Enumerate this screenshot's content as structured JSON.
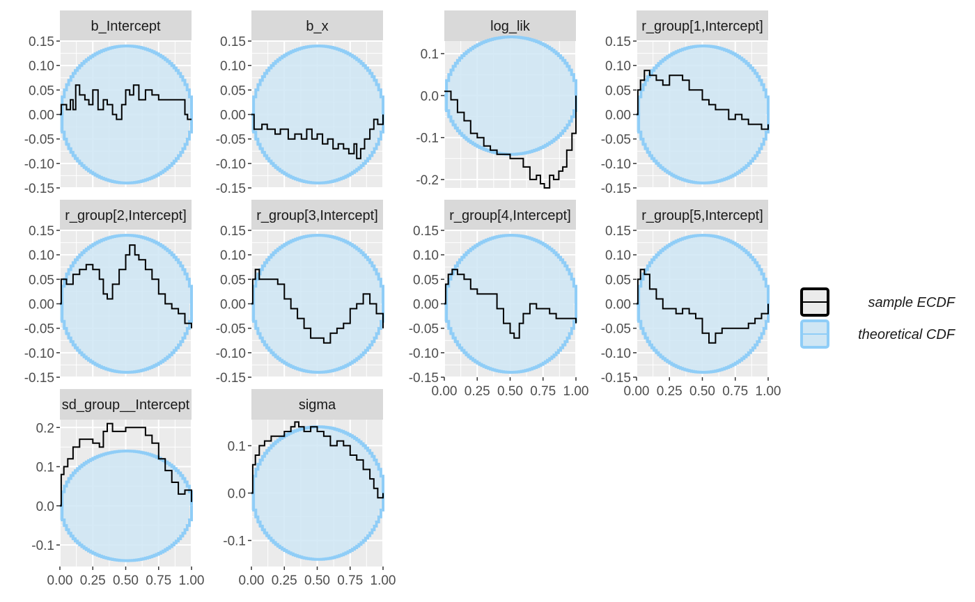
{
  "colors": {
    "panel_bg": "#ebebeb",
    "grid_major": "#ffffff",
    "strip_bg": "#d9d9d9",
    "band_fill": "#cfe6f4",
    "band_line": "#8fcdf7",
    "ecdf_line": "#000000",
    "tick_text": "#4d4d4d"
  },
  "legend": {
    "items": [
      {
        "key": "ecdf",
        "label": "sample ECDF"
      },
      {
        "key": "band",
        "label": "theoretical CDF"
      }
    ]
  },
  "chart_data": {
    "type": "line",
    "layout": "facet_wrap 4 columns, free y scales",
    "x_axis": {
      "range": [
        0,
        1
      ],
      "ticks": [
        0,
        0.25,
        0.5,
        0.75,
        1
      ],
      "tick_labels": [
        "0.00",
        "0.25",
        "0.50",
        "0.75",
        "1.00"
      ]
    },
    "band": {
      "description": "theoretical CDF simultaneous confidence band (circle-shaped)",
      "half_width_max": 0.14
    },
    "panels": [
      {
        "title": "b_Intercept",
        "ylim": [
          -0.15,
          0.15
        ],
        "yticks": [
          -0.15,
          -0.1,
          -0.05,
          0,
          0.05,
          0.1,
          0.15
        ],
        "ytick_labels": [
          "-0.15",
          "-0.10",
          "-0.05",
          "0.00",
          "0.05",
          "0.10",
          "0.15"
        ],
        "ecdf": [
          [
            0,
            0
          ],
          [
            0.01,
            0.02
          ],
          [
            0.05,
            0.01
          ],
          [
            0.08,
            0.03
          ],
          [
            0.1,
            0.01
          ],
          [
            0.12,
            0.06
          ],
          [
            0.15,
            0.04
          ],
          [
            0.19,
            0.03
          ],
          [
            0.22,
            0.02
          ],
          [
            0.25,
            0.05
          ],
          [
            0.29,
            0.01
          ],
          [
            0.33,
            0.03
          ],
          [
            0.36,
            0.02
          ],
          [
            0.4,
            0.0
          ],
          [
            0.43,
            -0.01
          ],
          [
            0.47,
            0.02
          ],
          [
            0.5,
            0.05
          ],
          [
            0.53,
            0.04
          ],
          [
            0.56,
            0.06
          ],
          [
            0.6,
            0.03
          ],
          [
            0.65,
            0.05
          ],
          [
            0.7,
            0.04
          ],
          [
            0.75,
            0.03
          ],
          [
            0.8,
            0.03
          ],
          [
            0.86,
            0.03
          ],
          [
            0.91,
            0.03
          ],
          [
            0.95,
            0.0
          ],
          [
            0.97,
            -0.01
          ],
          [
            1,
            -0.01
          ]
        ]
      },
      {
        "title": "b_x",
        "ylim": [
          -0.15,
          0.15
        ],
        "yticks": [
          -0.15,
          -0.1,
          -0.05,
          0,
          0.05,
          0.1,
          0.15
        ],
        "ytick_labels": [
          "-0.15",
          "-0.10",
          "-0.05",
          "0.00",
          "0.05",
          "0.10",
          "0.15"
        ],
        "ecdf": [
          [
            0,
            0
          ],
          [
            0.02,
            -0.03
          ],
          [
            0.08,
            -0.02
          ],
          [
            0.12,
            -0.03
          ],
          [
            0.18,
            -0.04
          ],
          [
            0.22,
            -0.03
          ],
          [
            0.28,
            -0.05
          ],
          [
            0.33,
            -0.04
          ],
          [
            0.38,
            -0.05
          ],
          [
            0.42,
            -0.03
          ],
          [
            0.46,
            -0.05
          ],
          [
            0.5,
            -0.04
          ],
          [
            0.54,
            -0.06
          ],
          [
            0.58,
            -0.05
          ],
          [
            0.62,
            -0.07
          ],
          [
            0.66,
            -0.06
          ],
          [
            0.7,
            -0.07
          ],
          [
            0.74,
            -0.08
          ],
          [
            0.78,
            -0.06
          ],
          [
            0.8,
            -0.09
          ],
          [
            0.83,
            -0.07
          ],
          [
            0.86,
            -0.05
          ],
          [
            0.9,
            -0.03
          ],
          [
            0.93,
            -0.01
          ],
          [
            0.96,
            -0.02
          ],
          [
            1,
            0.0
          ]
        ]
      },
      {
        "title": "log_lik",
        "ylim": [
          -0.22,
          0.13
        ],
        "yticks": [
          -0.2,
          -0.1,
          0,
          0.1
        ],
        "ytick_labels": [
          "-0.2",
          "-0.1",
          "0.0",
          "0.1"
        ],
        "ecdf": [
          [
            0,
            0.01
          ],
          [
            0.05,
            -0.01
          ],
          [
            0.1,
            -0.04
          ],
          [
            0.15,
            -0.06
          ],
          [
            0.2,
            -0.09
          ],
          [
            0.25,
            -0.1
          ],
          [
            0.3,
            -0.12
          ],
          [
            0.35,
            -0.13
          ],
          [
            0.4,
            -0.14
          ],
          [
            0.45,
            -0.14
          ],
          [
            0.5,
            -0.15
          ],
          [
            0.55,
            -0.15
          ],
          [
            0.6,
            -0.17
          ],
          [
            0.65,
            -0.2
          ],
          [
            0.7,
            -0.19
          ],
          [
            0.73,
            -0.21
          ],
          [
            0.76,
            -0.22
          ],
          [
            0.8,
            -0.19
          ],
          [
            0.83,
            -0.2
          ],
          [
            0.87,
            -0.18
          ],
          [
            0.9,
            -0.17
          ],
          [
            0.93,
            -0.13
          ],
          [
            0.97,
            -0.09
          ],
          [
            1,
            -0.07
          ],
          [
            1,
            0.0
          ]
        ]
      },
      {
        "title": "r_group[1,Intercept]",
        "ylim": [
          -0.15,
          0.15
        ],
        "yticks": [
          -0.15,
          -0.1,
          -0.05,
          0,
          0.05,
          0.1,
          0.15
        ],
        "ytick_labels": [
          "-0.15",
          "-0.10",
          "-0.05",
          "0.00",
          "0.05",
          "0.10",
          "0.15"
        ],
        "ecdf": [
          [
            0,
            0
          ],
          [
            0.01,
            0.05
          ],
          [
            0.03,
            0.07
          ],
          [
            0.06,
            0.09
          ],
          [
            0.1,
            0.08
          ],
          [
            0.15,
            0.07
          ],
          [
            0.2,
            0.06
          ],
          [
            0.25,
            0.08
          ],
          [
            0.3,
            0.08
          ],
          [
            0.35,
            0.07
          ],
          [
            0.4,
            0.05
          ],
          [
            0.45,
            0.05
          ],
          [
            0.5,
            0.03
          ],
          [
            0.55,
            0.02
          ],
          [
            0.6,
            0.01
          ],
          [
            0.65,
            0.01
          ],
          [
            0.7,
            -0.01
          ],
          [
            0.75,
            0.0
          ],
          [
            0.8,
            -0.01
          ],
          [
            0.85,
            -0.02
          ],
          [
            0.9,
            -0.02
          ],
          [
            0.95,
            -0.03
          ],
          [
            1,
            -0.02
          ]
        ]
      },
      {
        "title": "r_group[2,Intercept]",
        "ylim": [
          -0.15,
          0.15
        ],
        "yticks": [
          -0.15,
          -0.1,
          -0.05,
          0,
          0.05,
          0.1,
          0.15
        ],
        "ytick_labels": [
          "-0.15",
          "-0.10",
          "-0.05",
          "0.00",
          "0.05",
          "0.10",
          "0.15"
        ],
        "ecdf": [
          [
            0,
            0
          ],
          [
            0.01,
            0.05
          ],
          [
            0.05,
            0.04
          ],
          [
            0.1,
            0.06
          ],
          [
            0.15,
            0.07
          ],
          [
            0.2,
            0.08
          ],
          [
            0.25,
            0.07
          ],
          [
            0.3,
            0.05
          ],
          [
            0.33,
            0.02
          ],
          [
            0.36,
            0.01
          ],
          [
            0.4,
            0.04
          ],
          [
            0.45,
            0.07
          ],
          [
            0.5,
            0.1
          ],
          [
            0.53,
            0.12
          ],
          [
            0.57,
            0.1
          ],
          [
            0.6,
            0.09
          ],
          [
            0.65,
            0.07
          ],
          [
            0.7,
            0.05
          ],
          [
            0.75,
            0.02
          ],
          [
            0.8,
            0.0
          ],
          [
            0.85,
            -0.01
          ],
          [
            0.9,
            -0.02
          ],
          [
            0.95,
            -0.04
          ],
          [
            1,
            -0.05
          ]
        ]
      },
      {
        "title": "r_group[3,Intercept]",
        "ylim": [
          -0.15,
          0.15
        ],
        "yticks": [
          -0.15,
          -0.1,
          -0.05,
          0,
          0.05,
          0.1,
          0.15
        ],
        "ytick_labels": [
          "-0.15",
          "-0.10",
          "-0.05",
          "0.00",
          "0.05",
          "0.10",
          "0.15"
        ],
        "ecdf": [
          [
            0,
            0
          ],
          [
            0.01,
            0.05
          ],
          [
            0.03,
            0.07
          ],
          [
            0.06,
            0.05
          ],
          [
            0.1,
            0.05
          ],
          [
            0.15,
            0.05
          ],
          [
            0.2,
            0.04
          ],
          [
            0.25,
            0.01
          ],
          [
            0.3,
            -0.01
          ],
          [
            0.35,
            -0.03
          ],
          [
            0.4,
            -0.05
          ],
          [
            0.45,
            -0.07
          ],
          [
            0.5,
            -0.07
          ],
          [
            0.55,
            -0.08
          ],
          [
            0.6,
            -0.06
          ],
          [
            0.65,
            -0.05
          ],
          [
            0.7,
            -0.04
          ],
          [
            0.75,
            -0.01
          ],
          [
            0.8,
            0.0
          ],
          [
            0.85,
            0.02
          ],
          [
            0.9,
            0.0
          ],
          [
            0.95,
            -0.02
          ],
          [
            1,
            -0.05
          ]
        ]
      },
      {
        "title": "r_group[4,Intercept]",
        "ylim": [
          -0.15,
          0.15
        ],
        "yticks": [
          -0.15,
          -0.1,
          -0.05,
          0,
          0.05,
          0.1,
          0.15
        ],
        "ytick_labels": [
          "-0.15",
          "-0.10",
          "-0.05",
          "0.00",
          "0.05",
          "0.10",
          "0.15"
        ],
        "ecdf": [
          [
            0,
            0
          ],
          [
            0.01,
            0.04
          ],
          [
            0.03,
            0.06
          ],
          [
            0.06,
            0.07
          ],
          [
            0.1,
            0.06
          ],
          [
            0.15,
            0.05
          ],
          [
            0.2,
            0.03
          ],
          [
            0.25,
            0.02
          ],
          [
            0.3,
            0.02
          ],
          [
            0.35,
            0.02
          ],
          [
            0.4,
            -0.01
          ],
          [
            0.45,
            -0.04
          ],
          [
            0.5,
            -0.06
          ],
          [
            0.53,
            -0.07
          ],
          [
            0.57,
            -0.04
          ],
          [
            0.6,
            -0.02
          ],
          [
            0.65,
            0.0
          ],
          [
            0.7,
            -0.01
          ],
          [
            0.75,
            -0.01
          ],
          [
            0.8,
            -0.02
          ],
          [
            0.85,
            -0.03
          ],
          [
            0.9,
            -0.03
          ],
          [
            0.95,
            -0.03
          ],
          [
            1,
            -0.04
          ]
        ]
      },
      {
        "title": "r_group[5,Intercept]",
        "ylim": [
          -0.15,
          0.15
        ],
        "yticks": [
          -0.15,
          -0.1,
          -0.05,
          0,
          0.05,
          0.1,
          0.15
        ],
        "ytick_labels": [
          "-0.15",
          "-0.10",
          "-0.05",
          "0.00",
          "0.05",
          "0.10",
          "0.15"
        ],
        "ecdf": [
          [
            0,
            0
          ],
          [
            0.01,
            0.05
          ],
          [
            0.03,
            0.07
          ],
          [
            0.06,
            0.06
          ],
          [
            0.1,
            0.03
          ],
          [
            0.15,
            0.01
          ],
          [
            0.2,
            -0.01
          ],
          [
            0.25,
            -0.01
          ],
          [
            0.3,
            -0.02
          ],
          [
            0.35,
            -0.01
          ],
          [
            0.4,
            -0.02
          ],
          [
            0.45,
            -0.03
          ],
          [
            0.5,
            -0.06
          ],
          [
            0.55,
            -0.08
          ],
          [
            0.6,
            -0.06
          ],
          [
            0.65,
            -0.05
          ],
          [
            0.7,
            -0.05
          ],
          [
            0.75,
            -0.05
          ],
          [
            0.8,
            -0.05
          ],
          [
            0.85,
            -0.04
          ],
          [
            0.9,
            -0.03
          ],
          [
            0.95,
            -0.02
          ],
          [
            1,
            0.0
          ]
        ]
      },
      {
        "title": "sd_group__Intercept",
        "ylim": [
          -0.155,
          0.22
        ],
        "yticks": [
          -0.1,
          0,
          0.1,
          0.2
        ],
        "ytick_labels": [
          "-0.1",
          "0.0",
          "0.1",
          "0.2"
        ],
        "ecdf": [
          [
            0,
            0
          ],
          [
            0.01,
            0.08
          ],
          [
            0.03,
            0.1
          ],
          [
            0.06,
            0.12
          ],
          [
            0.1,
            0.15
          ],
          [
            0.15,
            0.17
          ],
          [
            0.2,
            0.17
          ],
          [
            0.25,
            0.16
          ],
          [
            0.3,
            0.15
          ],
          [
            0.33,
            0.19
          ],
          [
            0.36,
            0.21
          ],
          [
            0.4,
            0.19
          ],
          [
            0.45,
            0.19
          ],
          [
            0.5,
            0.2
          ],
          [
            0.55,
            0.2
          ],
          [
            0.6,
            0.2
          ],
          [
            0.65,
            0.18
          ],
          [
            0.7,
            0.16
          ],
          [
            0.75,
            0.12
          ],
          [
            0.8,
            0.09
          ],
          [
            0.85,
            0.06
          ],
          [
            0.9,
            0.03
          ],
          [
            0.95,
            0.04
          ],
          [
            1,
            0.01
          ]
        ]
      },
      {
        "title": "sigma",
        "ylim": [
          -0.155,
          0.155
        ],
        "yticks": [
          -0.1,
          0,
          0.1
        ],
        "ytick_labels": [
          "-0.1",
          "0.0",
          "0.1"
        ],
        "ecdf": [
          [
            0,
            0
          ],
          [
            0.01,
            0.06
          ],
          [
            0.03,
            0.08
          ],
          [
            0.06,
            0.1
          ],
          [
            0.1,
            0.11
          ],
          [
            0.15,
            0.12
          ],
          [
            0.2,
            0.12
          ],
          [
            0.25,
            0.13
          ],
          [
            0.3,
            0.14
          ],
          [
            0.33,
            0.15
          ],
          [
            0.36,
            0.14
          ],
          [
            0.4,
            0.13
          ],
          [
            0.45,
            0.14
          ],
          [
            0.5,
            0.13
          ],
          [
            0.55,
            0.12
          ],
          [
            0.6,
            0.1
          ],
          [
            0.65,
            0.11
          ],
          [
            0.7,
            0.1
          ],
          [
            0.75,
            0.08
          ],
          [
            0.8,
            0.07
          ],
          [
            0.85,
            0.05
          ],
          [
            0.9,
            0.03
          ],
          [
            0.93,
            0.01
          ],
          [
            0.96,
            -0.01
          ],
          [
            1,
            0.0
          ]
        ]
      }
    ]
  }
}
